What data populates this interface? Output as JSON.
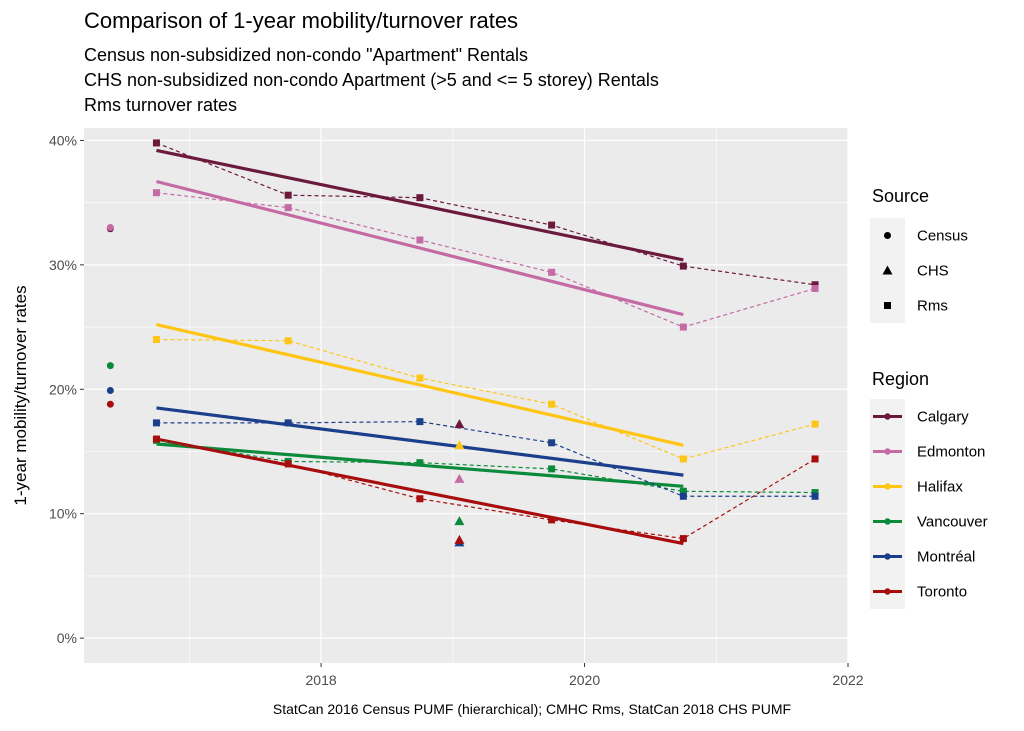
{
  "title": "Comparison of 1-year mobility/turnover rates",
  "subtitle_lines": [
    "Census non-subsidized non-condo \"Apartment\" Rentals",
    "CHS non-subsidized non-condo Apartment (>5 and <= 5 storey) Rentals",
    "Rms turnover rates"
  ],
  "caption": "StatCan 2016 Census PUMF (hierarchical); CMHC Rms, StatCan 2018 CHS PUMF",
  "colors": {
    "Calgary": "#6b1a3c",
    "Edmonton": "#c46ba5",
    "Halifax": "#ffc515",
    "Vancouver": "#0b8a3b",
    "Montréal": "#1c3f8c",
    "Toronto": "#a80d0d"
  },
  "chart_data": {
    "type": "scatter",
    "xlabel": "",
    "ylabel": "1-year mobility/turnover rates",
    "xlim": [
      2016.2,
      2022.0
    ],
    "ylim": [
      -0.02,
      0.41
    ],
    "x_ticks": [
      2018,
      2020,
      2022
    ],
    "x_tick_labels": [
      "2018",
      "2020",
      "2022"
    ],
    "y_ticks": [
      0,
      0.1,
      0.2,
      0.3,
      0.4
    ],
    "y_tick_labels": [
      "0%",
      "10%",
      "20%",
      "30%",
      "40%"
    ],
    "grid": true,
    "legend_position": "right",
    "legends": [
      {
        "title": "Source",
        "entries": [
          "Census",
          "CHS",
          "Rms"
        ],
        "shapes": [
          "circle",
          "triangle",
          "square"
        ]
      },
      {
        "title": "Region",
        "entries": [
          "Calgary",
          "Edmonton",
          "Halifax",
          "Vancouver",
          "Montréal",
          "Toronto"
        ]
      }
    ],
    "series": [
      {
        "name": "Calgary",
        "census": [
          [
            2016.4,
            0.329
          ]
        ],
        "chs": [
          [
            2019.05,
            0.172
          ]
        ],
        "rms": [
          [
            2016.75,
            0.398
          ],
          [
            2017.75,
            0.356
          ],
          [
            2018.75,
            0.354
          ],
          [
            2019.75,
            0.332
          ],
          [
            2020.75,
            0.299
          ],
          [
            2021.75,
            0.284
          ]
        ],
        "trend": [
          [
            2016.75,
            0.392
          ],
          [
            2020.75,
            0.304
          ]
        ]
      },
      {
        "name": "Edmonton",
        "census": [
          [
            2016.4,
            0.33
          ]
        ],
        "chs": [
          [
            2019.05,
            0.128
          ]
        ],
        "rms": [
          [
            2016.75,
            0.358
          ],
          [
            2017.75,
            0.346
          ],
          [
            2018.75,
            0.32
          ],
          [
            2019.75,
            0.294
          ],
          [
            2020.75,
            0.25
          ],
          [
            2021.75,
            0.281
          ]
        ],
        "trend": [
          [
            2016.75,
            0.367
          ],
          [
            2020.75,
            0.26
          ]
        ]
      },
      {
        "name": "Halifax",
        "census": [],
        "chs": [
          [
            2019.05,
            0.155
          ]
        ],
        "rms": [
          [
            2016.75,
            0.24
          ],
          [
            2017.75,
            0.239
          ],
          [
            2018.75,
            0.209
          ],
          [
            2019.75,
            0.188
          ],
          [
            2020.75,
            0.144
          ],
          [
            2021.75,
            0.172
          ]
        ],
        "trend": [
          [
            2016.75,
            0.252
          ],
          [
            2020.75,
            0.155
          ]
        ]
      },
      {
        "name": "Vancouver",
        "census": [
          [
            2016.4,
            0.219
          ]
        ],
        "chs": [
          [
            2019.05,
            0.094
          ]
        ],
        "rms": [
          [
            2016.75,
            0.159
          ],
          [
            2017.75,
            0.142
          ],
          [
            2018.75,
            0.141
          ],
          [
            2019.75,
            0.136
          ],
          [
            2020.75,
            0.118
          ],
          [
            2021.75,
            0.117
          ]
        ],
        "trend": [
          [
            2016.75,
            0.156
          ],
          [
            2020.75,
            0.122
          ]
        ]
      },
      {
        "name": "Montréal",
        "census": [
          [
            2016.4,
            0.199
          ]
        ],
        "chs": [
          [
            2019.05,
            0.077
          ]
        ],
        "rms": [
          [
            2016.75,
            0.173
          ],
          [
            2017.75,
            0.173
          ],
          [
            2018.75,
            0.174
          ],
          [
            2019.75,
            0.157
          ],
          [
            2020.75,
            0.114
          ],
          [
            2021.75,
            0.114
          ]
        ],
        "trend": [
          [
            2016.75,
            0.185
          ],
          [
            2020.75,
            0.131
          ]
        ]
      },
      {
        "name": "Toronto",
        "census": [
          [
            2016.4,
            0.188
          ]
        ],
        "chs": [
          [
            2019.05,
            0.079
          ]
        ],
        "rms": [
          [
            2016.75,
            0.16
          ],
          [
            2017.75,
            0.14
          ],
          [
            2018.75,
            0.112
          ],
          [
            2019.75,
            0.095
          ],
          [
            2020.75,
            0.08
          ],
          [
            2021.75,
            0.144
          ]
        ],
        "trend": [
          [
            2016.75,
            0.16
          ],
          [
            2020.75,
            0.076
          ]
        ]
      }
    ]
  }
}
